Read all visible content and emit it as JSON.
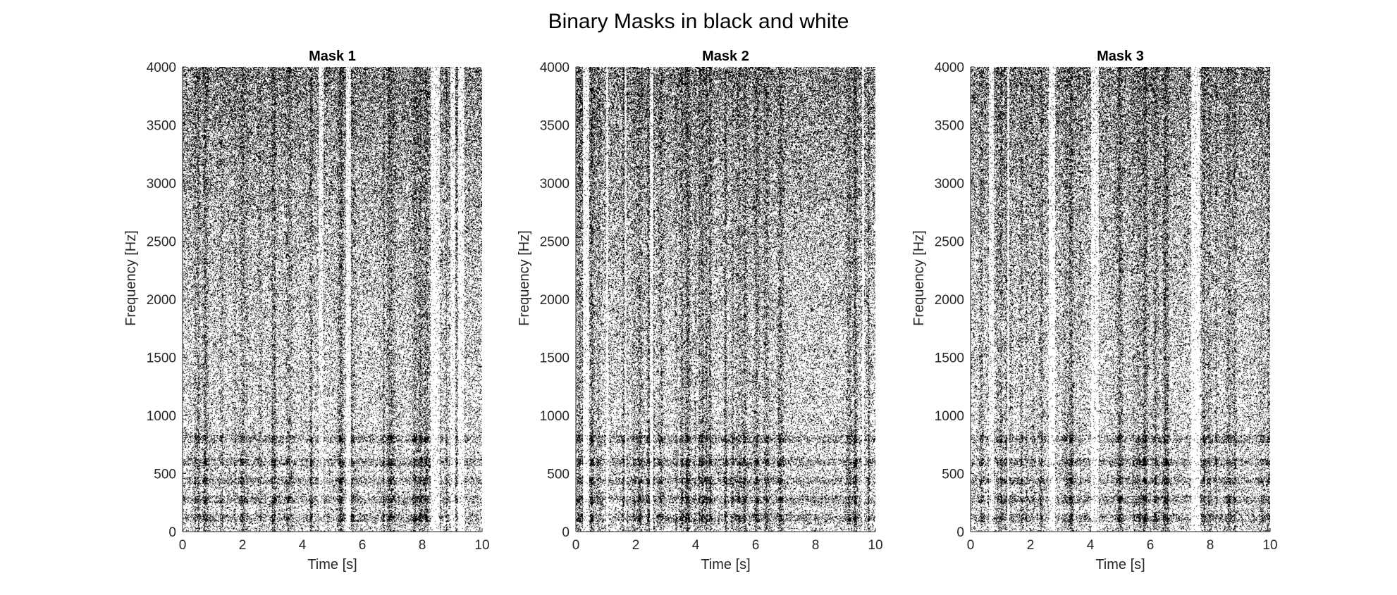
{
  "figure": {
    "title": "Binary Masks in black and white"
  },
  "chart_data": [
    {
      "type": "heatmap",
      "title": "Mask 1",
      "xlabel": "Time [s]",
      "ylabel": "Frequency [Hz]",
      "xlim": [
        0,
        10
      ],
      "ylim": [
        0,
        4000
      ],
      "xticks": [
        0,
        2,
        4,
        6,
        8,
        10
      ],
      "yticks": [
        0,
        500,
        1000,
        1500,
        2000,
        2500,
        3000,
        3500,
        4000
      ],
      "colormap": [
        "#ffffff",
        "#000000"
      ],
      "values": "binary time-frequency mask (0 = white, 1 = black)",
      "grid": false
    },
    {
      "type": "heatmap",
      "title": "Mask 2",
      "xlabel": "Time [s]",
      "ylabel": "Frequency [Hz]",
      "xlim": [
        0,
        10
      ],
      "ylim": [
        0,
        4000
      ],
      "xticks": [
        0,
        2,
        4,
        6,
        8,
        10
      ],
      "yticks": [
        0,
        500,
        1000,
        1500,
        2000,
        2500,
        3000,
        3500,
        4000
      ],
      "colormap": [
        "#ffffff",
        "#000000"
      ],
      "values": "binary time-frequency mask (0 = white, 1 = black)",
      "grid": false
    },
    {
      "type": "heatmap",
      "title": "Mask 3",
      "xlabel": "Time [s]",
      "ylabel": "Frequency [Hz]",
      "xlim": [
        0,
        10
      ],
      "ylim": [
        0,
        4000
      ],
      "xticks": [
        0,
        2,
        4,
        6,
        8,
        10
      ],
      "yticks": [
        0,
        500,
        1000,
        1500,
        2000,
        2500,
        3000,
        3500,
        4000
      ],
      "colormap": [
        "#ffffff",
        "#000000"
      ],
      "values": "binary time-frequency mask (0 = white, 1 = black)",
      "grid": false
    }
  ]
}
